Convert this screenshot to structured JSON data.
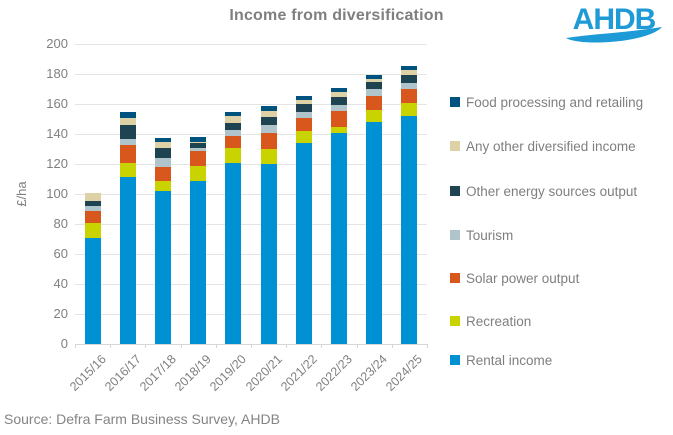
{
  "title": "Income from diversification",
  "logo_text": "AHDB",
  "source": "Source: Defra Farm Business Survey, AHDB",
  "chart_data": {
    "type": "bar",
    "stacked": true,
    "title": "Income from diversification",
    "ylabel": "£/ha",
    "ylim": [
      0,
      200
    ],
    "ytick_step": 20,
    "grid": "horizontal",
    "legend_position": "right",
    "categories": [
      "2015/16",
      "2016/17",
      "2017/18",
      "2018/19",
      "2019/20",
      "2020/21",
      "2021/22",
      "2022/23",
      "2023/24",
      "2024/25"
    ],
    "series": [
      {
        "name": "Rental income",
        "color": "#0090d4",
        "values": [
          71,
          111.5,
          102,
          108.5,
          120.5,
          120,
          134,
          140.5,
          148,
          152
        ]
      },
      {
        "name": "Recreation",
        "color": "#c9d300",
        "values": [
          9.5,
          9,
          6.5,
          10,
          10,
          10,
          8,
          4.5,
          8,
          8.5
        ]
      },
      {
        "name": "Solar power output",
        "color": "#d8571c",
        "values": [
          8,
          12.5,
          9.5,
          10.5,
          8,
          11,
          8.5,
          10.5,
          9.5,
          9.5
        ]
      },
      {
        "name": "Tourism",
        "color": "#b0c4cc",
        "values": [
          3.5,
          4,
          6,
          1.5,
          4,
          5,
          4.5,
          4,
          4.5,
          4
        ]
      },
      {
        "name": "Other energy sources output",
        "color": "#1e4452",
        "values": [
          3.5,
          9,
          6.5,
          3.5,
          5,
          5.5,
          5,
          5,
          4.5,
          5.5
        ]
      },
      {
        "name": "Any other diversified income",
        "color": "#ddd1a5",
        "values": [
          5.5,
          4.5,
          4,
          1,
          4.5,
          4,
          3,
          3.5,
          2.5,
          3
        ]
      },
      {
        "name": "Food processing and retailing",
        "color": "#00537f",
        "values": [
          0,
          4.5,
          3,
          3,
          3,
          3,
          2.5,
          3,
          2.5,
          3
        ]
      }
    ],
    "legend_top_to_bottom": [
      "Food processing and retailing",
      "Any other diversified income",
      "Other energy sources output",
      "Tourism",
      "Solar power output",
      "Recreation",
      "Rental income"
    ],
    "accent_color": "#1e9bd7"
  }
}
